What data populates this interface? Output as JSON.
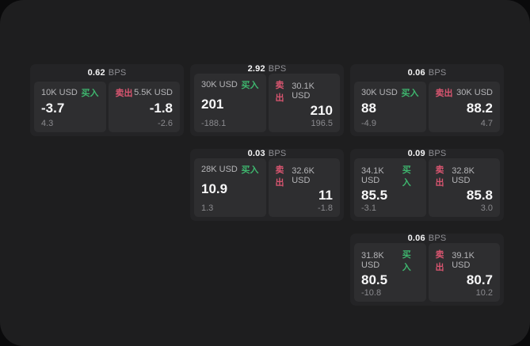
{
  "labels": {
    "bps_unit": "BPS",
    "buy_label": "买入",
    "sell_label": "卖出"
  },
  "colors": {
    "buy_accent": "#3eb66e",
    "sell_accent": "#d95570",
    "panel_bg": "#1e1e1f",
    "card_bg": "#242426",
    "tile_bg": "#2e2e30",
    "primary_text": "#f7f7f8",
    "secondary_text": "#8a8a8e"
  },
  "cards": [
    {
      "row": 1,
      "col": 1,
      "bps": "0.62",
      "buy": {
        "amount": "10K USD",
        "value": "-3.7",
        "sub": "4.3"
      },
      "sell": {
        "amount": "5.5K USD",
        "value": "-1.8",
        "sub": "-2.6"
      }
    },
    {
      "row": 1,
      "col": 2,
      "bps": "2.92",
      "buy": {
        "amount": "30K USD",
        "value": "201",
        "sub": "-188.1"
      },
      "sell": {
        "amount": "30.1K USD",
        "value": "210",
        "sub": "196.5"
      }
    },
    {
      "row": 1,
      "col": 3,
      "bps": "0.06",
      "buy": {
        "amount": "30K USD",
        "value": "88",
        "sub": "-4.9"
      },
      "sell": {
        "amount": "30K USD",
        "value": "88.2",
        "sub": "4.7"
      }
    },
    {
      "row": 2,
      "col": 2,
      "bps": "0.03",
      "buy": {
        "amount": "28K USD",
        "value": "10.9",
        "sub": "1.3"
      },
      "sell": {
        "amount": "32.6K USD",
        "value": "11",
        "sub": "-1.8"
      }
    },
    {
      "row": 2,
      "col": 3,
      "bps": "0.09",
      "buy": {
        "amount": "34.1K USD",
        "value": "85.5",
        "sub": "-3.1"
      },
      "sell": {
        "amount": "32.8K USD",
        "value": "85.8",
        "sub": "3.0"
      }
    },
    {
      "row": 3,
      "col": 3,
      "bps": "0.06",
      "buy": {
        "amount": "31.8K USD",
        "value": "80.5",
        "sub": "-10.8"
      },
      "sell": {
        "amount": "39.1K USD",
        "value": "80.7",
        "sub": "10.2"
      }
    }
  ]
}
